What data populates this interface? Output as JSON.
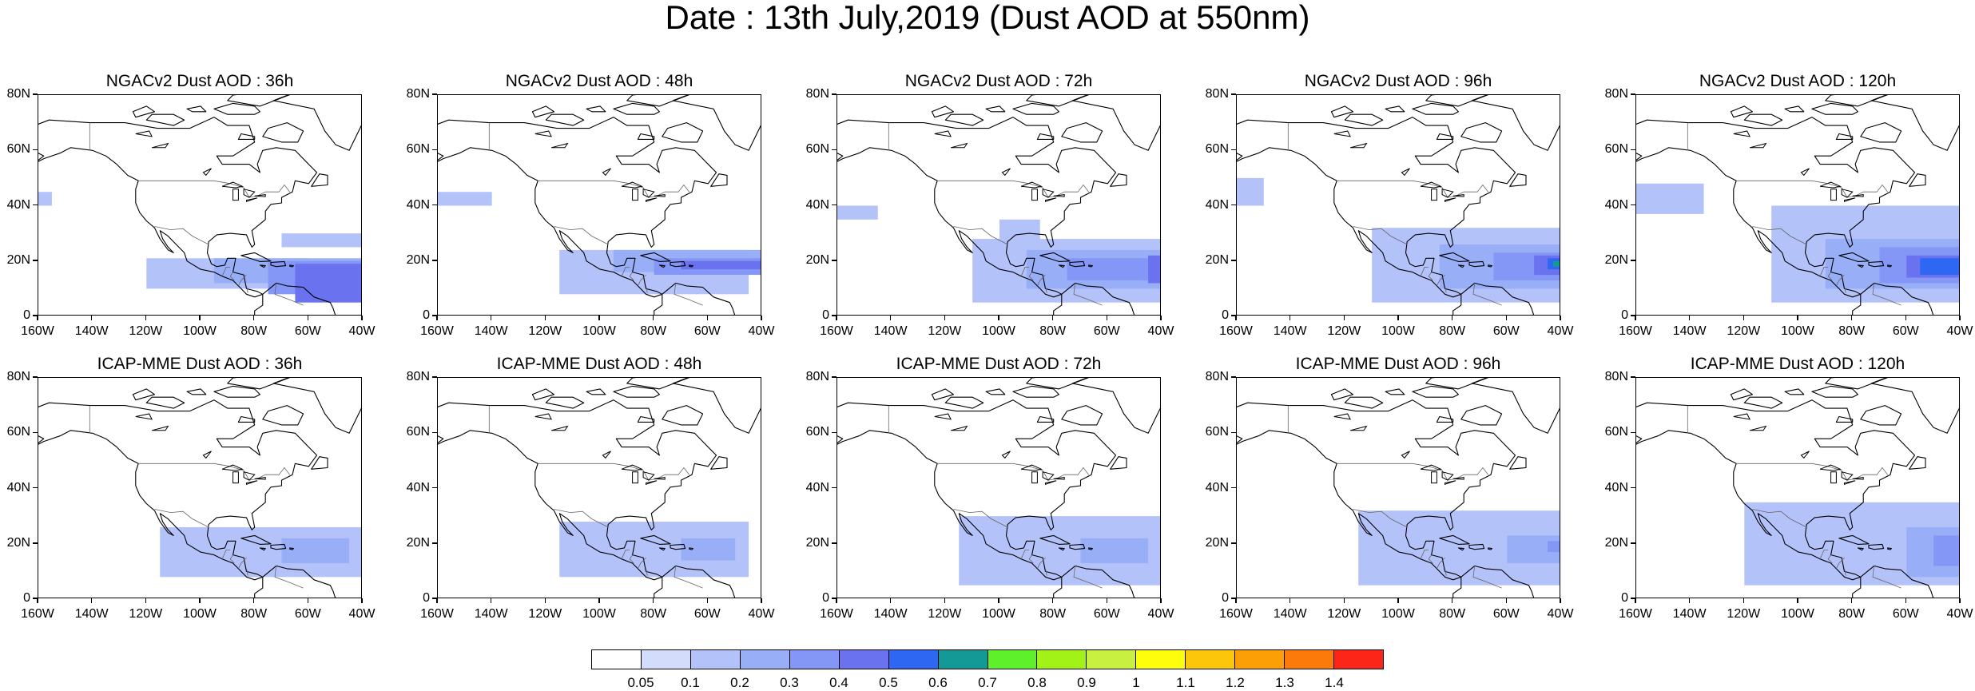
{
  "title": "Date : 13th July,2019 (Dust AOD at 550nm)",
  "panels": [
    {
      "title": "NGACv2 Dust AOD : 36h",
      "model": "NGACv2",
      "lead": "36h",
      "dust": [
        [
          -120,
          21,
          -60,
          10,
          0.15
        ],
        [
          -95,
          21,
          -40,
          12,
          0.2
        ],
        [
          -75,
          20,
          -40,
          8,
          0.3
        ],
        [
          -65,
          19,
          -40,
          5,
          0.4
        ],
        [
          -160,
          45,
          -155,
          40,
          0.1
        ],
        [
          -70,
          30,
          -40,
          25,
          0.1
        ]
      ]
    },
    {
      "title": "NGACv2 Dust AOD : 48h",
      "model": "NGACv2",
      "lead": "48h",
      "dust": [
        [
          -115,
          24,
          -45,
          8,
          0.15
        ],
        [
          -95,
          24,
          -40,
          16,
          0.2
        ],
        [
          -80,
          21,
          -40,
          15,
          0.3
        ],
        [
          -70,
          20,
          -40,
          17,
          0.4
        ],
        [
          -160,
          45,
          -140,
          40,
          0.1
        ]
      ]
    },
    {
      "title": "NGACv2 Dust AOD : 72h",
      "model": "NGACv2",
      "lead": "72h",
      "dust": [
        [
          -110,
          28,
          -40,
          5,
          0.15
        ],
        [
          -100,
          35,
          -85,
          25,
          0.1
        ],
        [
          -90,
          24,
          -40,
          10,
          0.2
        ],
        [
          -75,
          21,
          -45,
          13,
          0.3
        ],
        [
          -45,
          22,
          -40,
          12,
          0.4
        ],
        [
          -160,
          40,
          -145,
          35,
          0.1
        ]
      ]
    },
    {
      "title": "NGACv2 Dust AOD : 96h",
      "model": "NGACv2",
      "lead": "96h",
      "dust": [
        [
          -110,
          32,
          -40,
          5,
          0.15
        ],
        [
          -160,
          50,
          -150,
          40,
          0.1
        ],
        [
          -85,
          26,
          -40,
          10,
          0.2
        ],
        [
          -65,
          23,
          -40,
          13,
          0.3
        ],
        [
          -50,
          22,
          -40,
          15,
          0.4
        ],
        [
          -45,
          21,
          -40,
          17,
          0.5
        ],
        [
          -43,
          20,
          -40,
          18,
          0.6
        ]
      ]
    },
    {
      "title": "NGACv2 Dust AOD : 120h",
      "model": "NGACv2",
      "lead": "120h",
      "dust": [
        [
          -160,
          48,
          -135,
          37,
          0.15
        ],
        [
          -110,
          40,
          -40,
          5,
          0.15
        ],
        [
          -90,
          28,
          -40,
          10,
          0.2
        ],
        [
          -70,
          25,
          -40,
          12,
          0.3
        ],
        [
          -60,
          22,
          -40,
          14,
          0.4
        ],
        [
          -55,
          21,
          -40,
          15,
          0.5
        ]
      ]
    },
    {
      "title": "ICAP-MME Dust AOD : 36h",
      "model": "ICAP-MME",
      "lead": "36h",
      "dust": [
        [
          -115,
          26,
          -40,
          8,
          0.15
        ],
        [
          -70,
          22,
          -45,
          13,
          0.2
        ]
      ]
    },
    {
      "title": "ICAP-MME Dust AOD : 48h",
      "model": "ICAP-MME",
      "lead": "48h",
      "dust": [
        [
          -115,
          28,
          -45,
          8,
          0.15
        ],
        [
          -70,
          22,
          -50,
          14,
          0.2
        ]
      ]
    },
    {
      "title": "ICAP-MME Dust AOD : 72h",
      "model": "ICAP-MME",
      "lead": "72h",
      "dust": [
        [
          -115,
          30,
          -40,
          5,
          0.15
        ],
        [
          -70,
          22,
          -45,
          13,
          0.2
        ]
      ]
    },
    {
      "title": "ICAP-MME Dust AOD : 96h",
      "model": "ICAP-MME",
      "lead": "96h",
      "dust": [
        [
          -115,
          32,
          -40,
          5,
          0.15
        ],
        [
          -60,
          23,
          -40,
          13,
          0.2
        ],
        [
          -45,
          21,
          -40,
          17,
          0.3
        ]
      ]
    },
    {
      "title": "ICAP-MME Dust AOD : 120h",
      "model": "ICAP-MME",
      "lead": "120h",
      "dust": [
        [
          -120,
          35,
          -40,
          5,
          0.15
        ],
        [
          -60,
          26,
          -40,
          8,
          0.2
        ],
        [
          -50,
          23,
          -40,
          12,
          0.3
        ]
      ]
    }
  ],
  "axes": {
    "lon_ticks": [
      "160W",
      "140W",
      "120W",
      "100W",
      "80W",
      "60W",
      "40W"
    ],
    "lat_ticks": [
      "0",
      "20N",
      "40N",
      "60N",
      "80N"
    ],
    "lon_values": [
      -160,
      -140,
      -120,
      -100,
      -80,
      -60,
      -40
    ],
    "lat_values": [
      0,
      20,
      40,
      60,
      80
    ],
    "lon_range": [
      -160,
      -40
    ],
    "lat_range": [
      0,
      80
    ]
  },
  "colorbar": {
    "labels": [
      "0.05",
      "0.1",
      "0.2",
      "0.3",
      "0.4",
      "0.5",
      "0.6",
      "0.7",
      "0.8",
      "0.9",
      "1",
      "1.1",
      "1.2",
      "1.3",
      "1.4"
    ],
    "levels": [
      0.05,
      0.1,
      0.2,
      0.3,
      0.4,
      0.5,
      0.6,
      0.7,
      0.8,
      0.9,
      1,
      1.1,
      1.2,
      1.3,
      1.4
    ],
    "colors": [
      "#ffffff",
      "#d4dcfc",
      "#b4c2fa",
      "#98aff8",
      "#8496f6",
      "#6a72f0",
      "#2d67f2",
      "#149a96",
      "#5ef02a",
      "#a2f218",
      "#c7f040",
      "#fdfd0c",
      "#fcc60a",
      "#fc9e06",
      "#fc7a0a",
      "#fc2618"
    ]
  }
}
